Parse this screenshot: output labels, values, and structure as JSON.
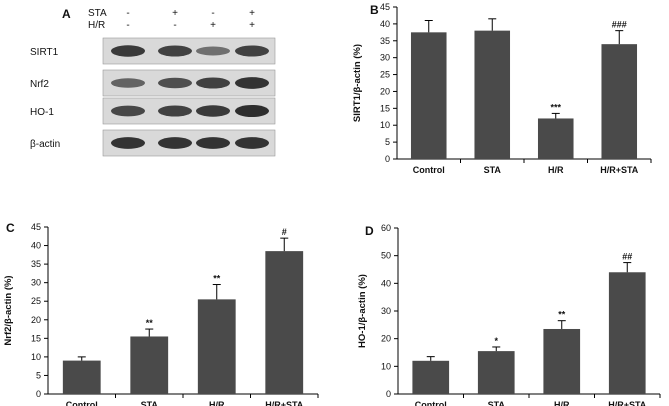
{
  "colors": {
    "bar": "#4a4a4a",
    "axis": "#000000",
    "blot_bg": "#d9d9d9",
    "band": "#262626"
  },
  "blot": {
    "letter": "A",
    "treatments": [
      {
        "name": "STA",
        "signs": [
          "-",
          "+",
          "-",
          "+"
        ]
      },
      {
        "name": "H/R",
        "signs": [
          "-",
          "-",
          "+",
          "+"
        ]
      }
    ],
    "rows": [
      {
        "label": "SIRT1",
        "intensity": [
          0.85,
          0.8,
          0.45,
          0.8
        ]
      },
      {
        "label": "Nrf2",
        "intensity": [
          0.55,
          0.7,
          0.8,
          0.9
        ]
      },
      {
        "label": "HO-1",
        "intensity": [
          0.75,
          0.8,
          0.85,
          0.95
        ]
      },
      {
        "label": "β-actin",
        "intensity": [
          0.9,
          0.9,
          0.9,
          0.9
        ]
      }
    ]
  },
  "chart_data": [
    {
      "letter": "B",
      "type": "bar",
      "categories": [
        "Control",
        "STA",
        "H/R",
        "H/R+STA"
      ],
      "values": [
        37.5,
        38,
        12,
        34
      ],
      "errors": [
        3.5,
        3.5,
        1.5,
        4
      ],
      "annotations": [
        "",
        "",
        "***",
        "###"
      ],
      "ylabel": "SIRT1/β-actin (%)",
      "ylim": [
        0,
        45
      ],
      "yticks": [
        "0",
        "5",
        "10",
        "15",
        "20",
        "25",
        "30",
        "35",
        "40",
        "45"
      ]
    },
    {
      "letter": "C",
      "type": "bar",
      "categories": [
        "Control",
        "STA",
        "H/R",
        "H/R+STA"
      ],
      "values": [
        9,
        15.5,
        25.5,
        38.5
      ],
      "errors": [
        1,
        2,
        4,
        3.5
      ],
      "annotations": [
        "",
        "**",
        "**",
        "#"
      ],
      "ylabel": "Nrf2/β-actin (%)",
      "ylim": [
        0,
        45
      ],
      "yticks": [
        "0",
        "5",
        "10",
        "15",
        "20",
        "25",
        "30",
        "35",
        "40",
        "45"
      ]
    },
    {
      "letter": "D",
      "type": "bar",
      "categories": [
        "Control",
        "STA",
        "H/R",
        "H/R+STA"
      ],
      "values": [
        12,
        15.5,
        23.5,
        44
      ],
      "errors": [
        1.5,
        1.5,
        3,
        3.5
      ],
      "annotations": [
        "",
        "*",
        "**",
        "##"
      ],
      "ylabel": "HO-1/β-actin (%)",
      "ylim": [
        0,
        60
      ],
      "yticks": [
        "0",
        "10",
        "20",
        "30",
        "40",
        "50",
        "60"
      ]
    }
  ]
}
